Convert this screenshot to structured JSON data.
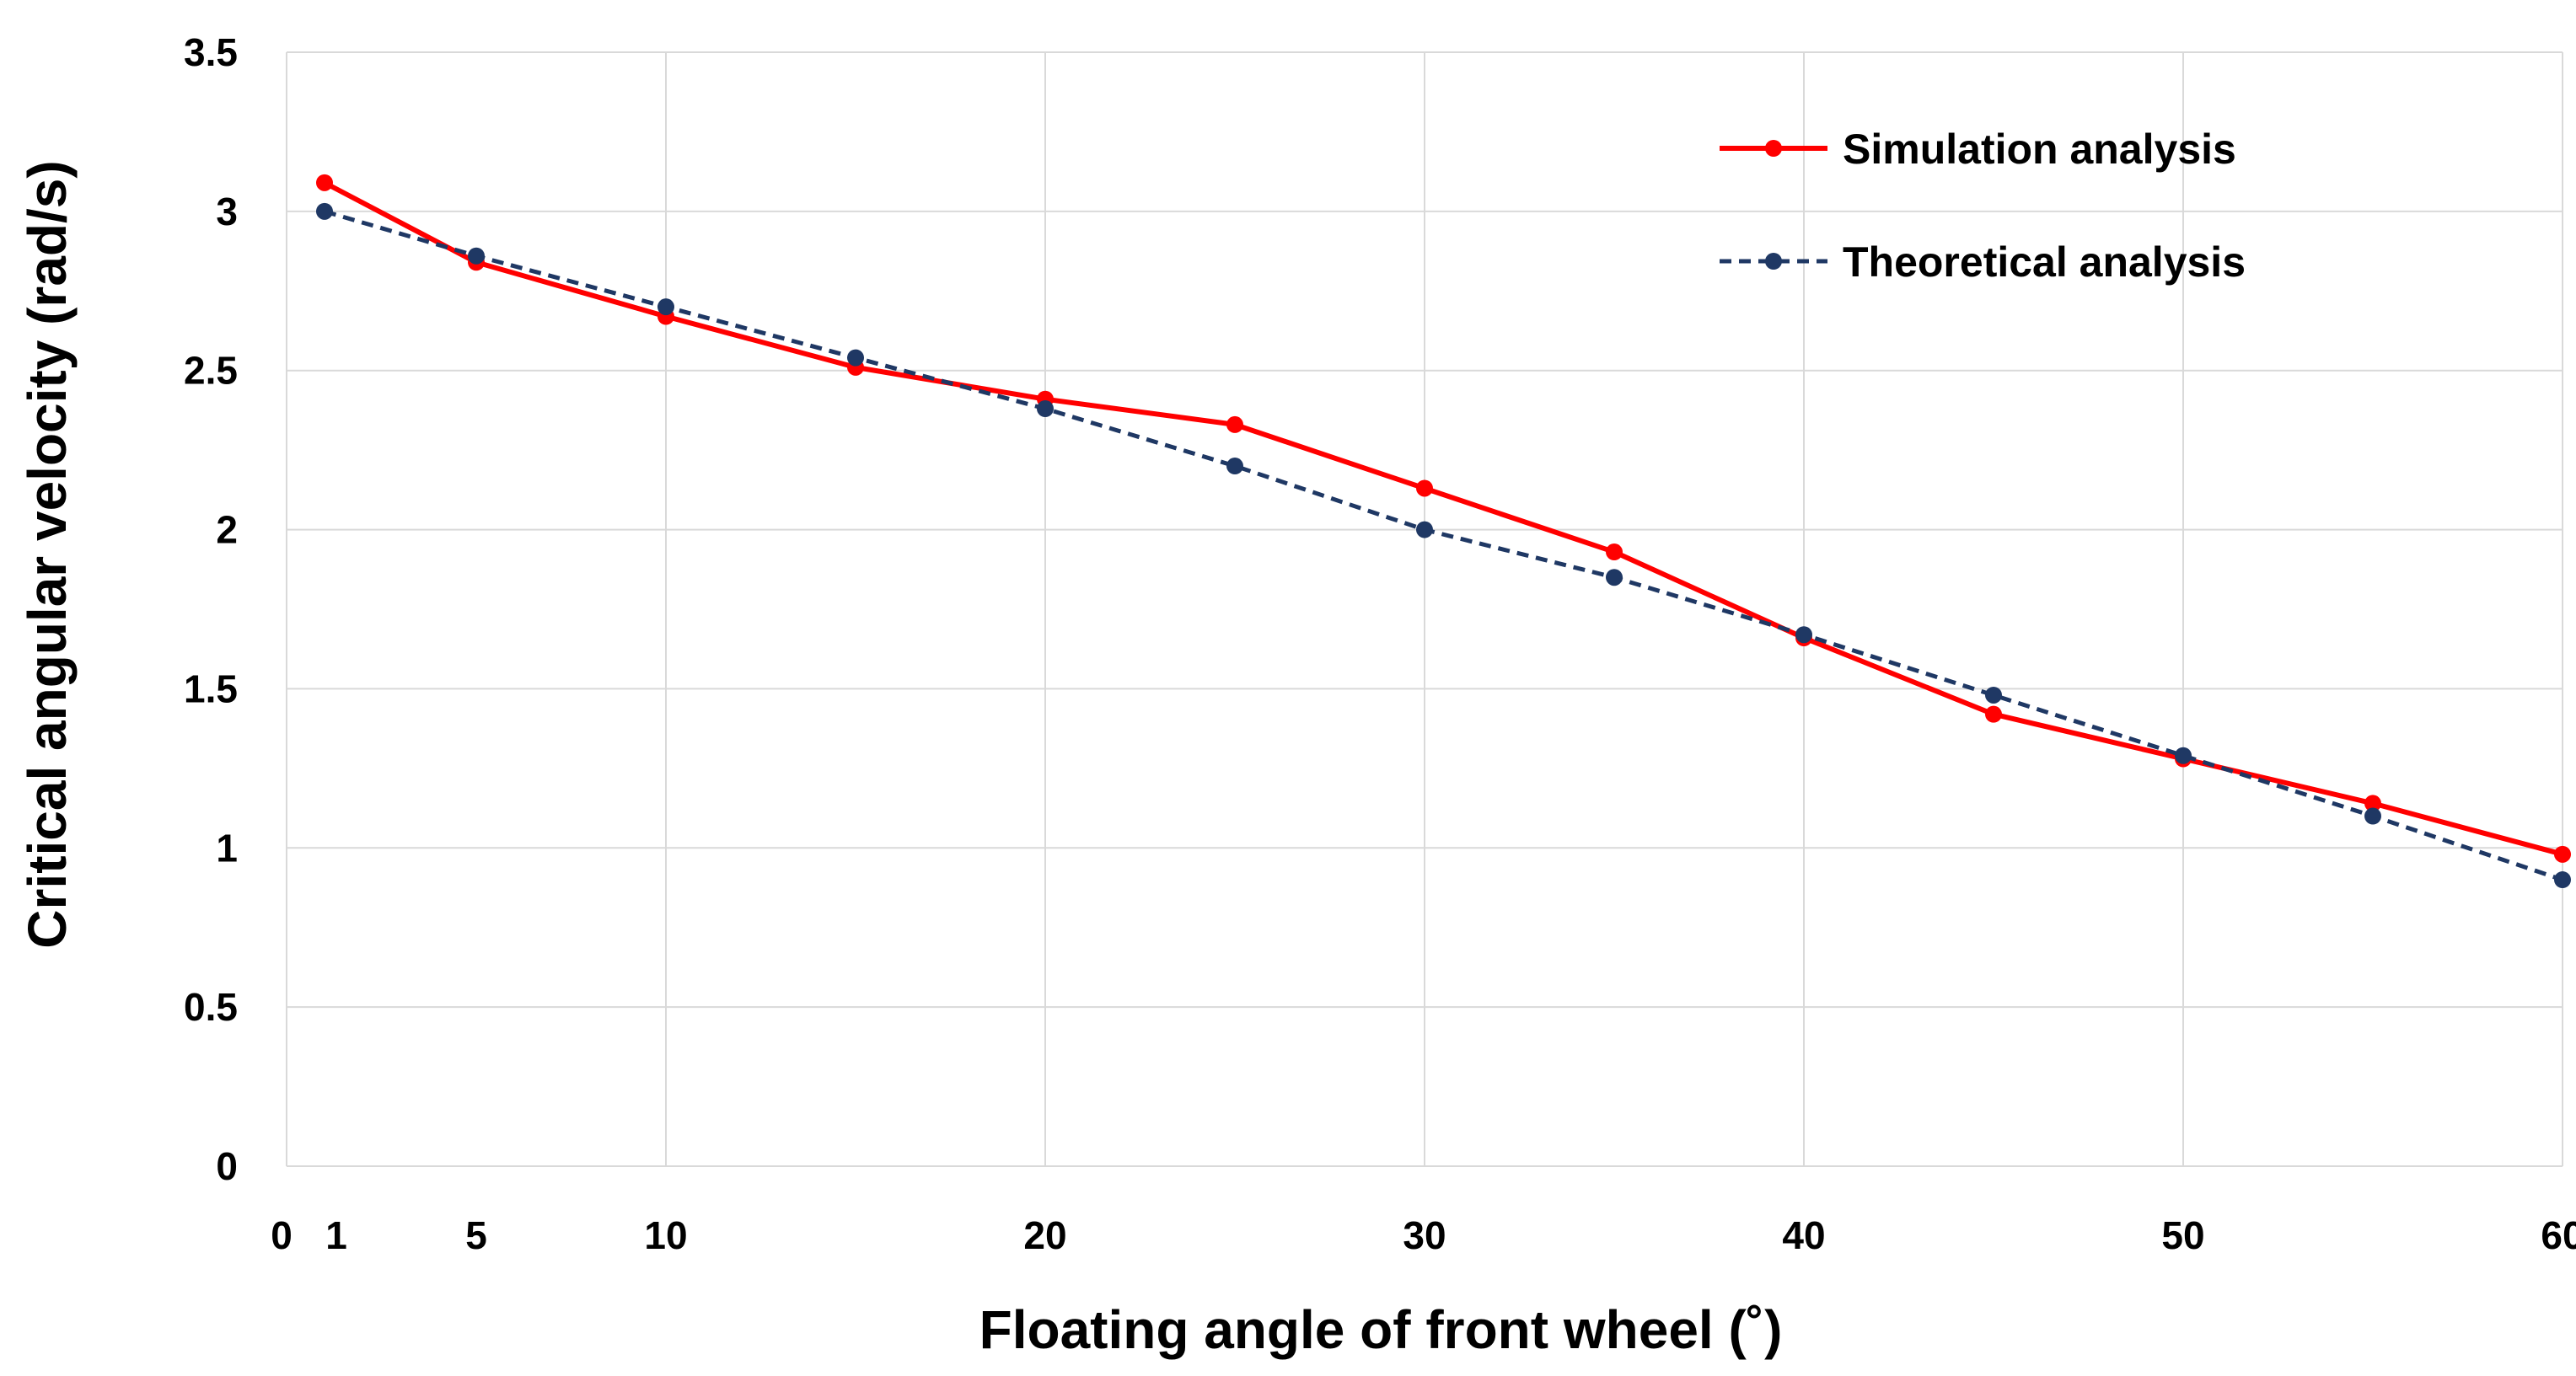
{
  "chart_data": {
    "type": "line",
    "title": "",
    "xlabel": "Floating angle of front wheel (˚)",
    "ylabel": "Critical angular velocity (rad/s)",
    "xlim": [
      0,
      60
    ],
    "ylim": [
      0,
      3.5
    ],
    "grid": true,
    "x_ticks": [
      0,
      1,
      5,
      10,
      20,
      30,
      40,
      50,
      60
    ],
    "x_gridlines": [
      10,
      20,
      30,
      40,
      50,
      60
    ],
    "y_ticks": [
      0,
      0.5,
      1,
      1.5,
      2,
      2.5,
      3,
      3.5
    ],
    "y_tick_labels": [
      "0",
      "0.5",
      "1",
      "1.5",
      "2",
      "2.5",
      "3",
      "3.5"
    ],
    "legend_position": "top-right",
    "series": [
      {
        "name": "Simulation analysis",
        "color": "#ff0000",
        "line_style": "solid",
        "x": [
          1,
          5,
          10,
          15,
          20,
          25,
          30,
          35,
          40,
          45,
          50,
          55,
          60
        ],
        "values": [
          3.09,
          2.84,
          2.67,
          2.51,
          2.41,
          2.33,
          2.13,
          1.93,
          1.66,
          1.42,
          1.28,
          1.14,
          0.98
        ]
      },
      {
        "name": "Theoretical analysis",
        "color": "#1f3864",
        "line_style": "dashed",
        "x": [
          1,
          5,
          10,
          15,
          20,
          25,
          30,
          35,
          40,
          45,
          50,
          55,
          60
        ],
        "values": [
          3.0,
          2.86,
          2.7,
          2.54,
          2.38,
          2.2,
          2.0,
          1.85,
          1.67,
          1.48,
          1.29,
          1.1,
          0.9
        ]
      }
    ]
  }
}
